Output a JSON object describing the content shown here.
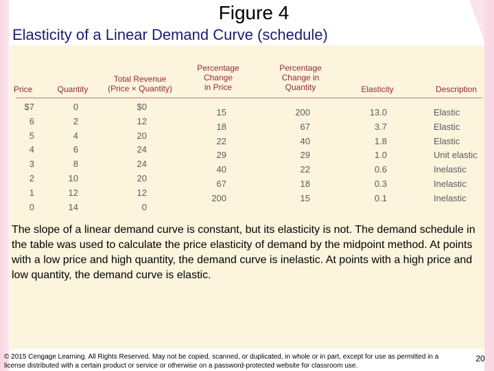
{
  "slide": {
    "figure_title": "Figure 4",
    "subtitle": "Elasticity of a Linear Demand Curve (schedule)",
    "caption": "The slope of a linear demand curve is constant, but its elasticity is not. The demand schedule in the table was used to calculate the price elasticity of demand by the midpoint method. At points with a low price and high quantity, the demand curve is inelastic. At points with a high price and low quantity, the demand curve is elastic.",
    "footer": "© 2015 Cengage Learning. All Rights Reserved. May not be copied, scanned, or duplicated, in whole or in part, except for use as permitted in a license distributed with a certain product or service or otherwise on a password-protected website for classroom use.",
    "page_number": "20"
  },
  "table": {
    "headers": {
      "price": "Price",
      "quantity": "Quantity",
      "revenue": "Total Revenue\n(Price × Quantity)",
      "pct_price": "Percentage\nChange\nin Price",
      "pct_quantity": "Percentage\nChange in\nQuantity",
      "elasticity": "Elasticity",
      "description": "Description"
    },
    "rows": [
      {
        "price": "$7",
        "quantity": "0",
        "revenue": "$0"
      },
      {
        "price": "6",
        "quantity": "2",
        "revenue": "12"
      },
      {
        "price": "5",
        "quantity": "4",
        "revenue": "20"
      },
      {
        "price": "4",
        "quantity": "6",
        "revenue": "24"
      },
      {
        "price": "3",
        "quantity": "8",
        "revenue": "24"
      },
      {
        "price": "2",
        "quantity": "10",
        "revenue": "20"
      },
      {
        "price": "1",
        "quantity": "12",
        "revenue": "12"
      },
      {
        "price": "0",
        "quantity": "14",
        "revenue": "0"
      }
    ],
    "changes": [
      {
        "pct_price": "15",
        "pct_quantity": "200",
        "elasticity": "13.0",
        "description": "Elastic"
      },
      {
        "pct_price": "18",
        "pct_quantity": "67",
        "elasticity": "3.7",
        "description": "Elastic"
      },
      {
        "pct_price": "22",
        "pct_quantity": "40",
        "elasticity": "1.8",
        "description": "Elastic"
      },
      {
        "pct_price": "29",
        "pct_quantity": "29",
        "elasticity": "1.0",
        "description": "Unit elastic"
      },
      {
        "pct_price": "40",
        "pct_quantity": "22",
        "elasticity": "0.6",
        "description": "Inelastic"
      },
      {
        "pct_price": "67",
        "pct_quantity": "18",
        "elasticity": "0.3",
        "description": "Inelastic"
      },
      {
        "pct_price": "200",
        "pct_quantity": "15",
        "elasticity": "0.1",
        "description": "Inelastic"
      }
    ]
  }
}
